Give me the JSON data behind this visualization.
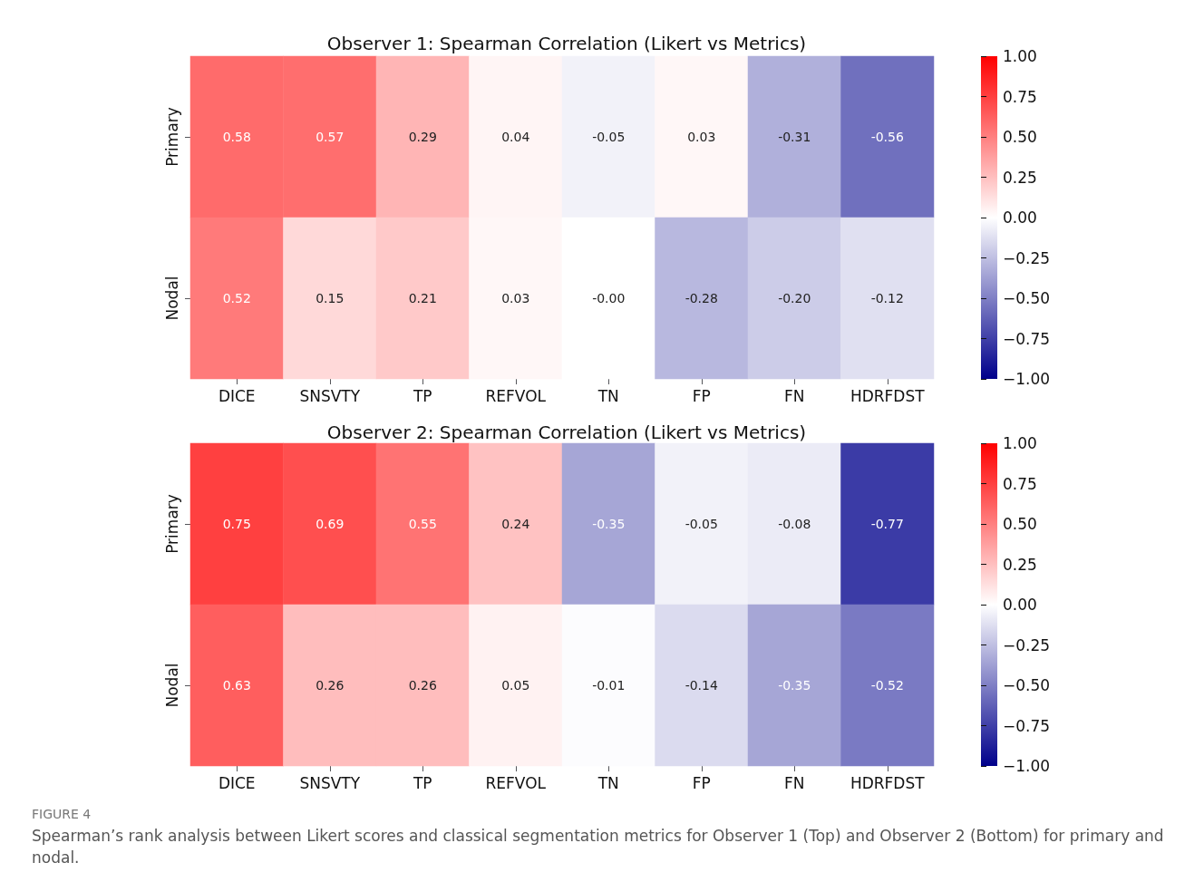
{
  "chart_data": [
    {
      "type": "heatmap",
      "title": "Observer 1: Spearman Correlation (Likert vs Metrics)",
      "categories": [
        "DICE",
        "SNSVTY",
        "TP",
        "REFVOL",
        "TN",
        "FP",
        "FN",
        "HDRFDST"
      ],
      "y_categories": [
        "Primary",
        "Nodal"
      ],
      "cells": [
        [
          0.58,
          0.57,
          0.29,
          0.04,
          -0.05,
          0.03,
          -0.31,
          -0.56
        ],
        [
          0.52,
          0.15,
          0.21,
          0.03,
          -0.0,
          -0.28,
          -0.2,
          -0.12
        ]
      ],
      "cell_labels": [
        [
          "0.58",
          "0.57",
          "0.29",
          "0.04",
          "-0.05",
          "0.03",
          "-0.31",
          "-0.56"
        ],
        [
          "0.52",
          "0.15",
          "0.21",
          "0.03",
          "-0.00",
          "-0.28",
          "-0.20",
          "-0.12"
        ]
      ],
      "clim": [
        -1,
        1
      ],
      "cticks": [
        {
          "value": 1,
          "label": "1.00"
        },
        {
          "value": 0.75,
          "label": "0.75"
        },
        {
          "value": 0.5,
          "label": "0.50"
        },
        {
          "value": 0.25,
          "label": "0.25"
        },
        {
          "value": 0,
          "label": "0.00"
        },
        {
          "value": -0.25,
          "label": "−0.25"
        },
        {
          "value": -0.5,
          "label": "−0.50"
        },
        {
          "value": -0.75,
          "label": "−0.75"
        },
        {
          "value": -1,
          "label": "−1.00"
        }
      ]
    },
    {
      "type": "heatmap",
      "title": "Observer 2: Spearman Correlation (Likert vs Metrics)",
      "categories": [
        "DICE",
        "SNSVTY",
        "TP",
        "REFVOL",
        "TN",
        "FP",
        "FN",
        "HDRFDST"
      ],
      "y_categories": [
        "Primary",
        "Nodal"
      ],
      "cells": [
        [
          0.75,
          0.69,
          0.55,
          0.24,
          -0.35,
          -0.05,
          -0.08,
          -0.77
        ],
        [
          0.63,
          0.26,
          0.26,
          0.05,
          -0.01,
          -0.14,
          -0.35,
          -0.52
        ]
      ],
      "cell_labels": [
        [
          "0.75",
          "0.69",
          "0.55",
          "0.24",
          "-0.35",
          "-0.05",
          "-0.08",
          "-0.77"
        ],
        [
          "0.63",
          "0.26",
          "0.26",
          "0.05",
          "-0.01",
          "-0.14",
          "-0.35",
          "-0.52"
        ]
      ],
      "clim": [
        -1,
        1
      ],
      "cticks": [
        {
          "value": 1,
          "label": "1.00"
        },
        {
          "value": 0.75,
          "label": "0.75"
        },
        {
          "value": 0.5,
          "label": "0.50"
        },
        {
          "value": 0.25,
          "label": "0.25"
        },
        {
          "value": 0,
          "label": "0.00"
        },
        {
          "value": -0.25,
          "label": "−0.25"
        },
        {
          "value": -0.5,
          "label": "−0.50"
        },
        {
          "value": -0.75,
          "label": "−0.75"
        },
        {
          "value": -1,
          "label": "−1.00"
        }
      ],
      "annotations": [
        "FIGURE 4",
        "Spearman’s rank analysis between Likert scores and classical segmentation metrics for Observer 1 (Top) and Observer 2 (Bottom) for primary and nodal."
      ]
    }
  ]
}
